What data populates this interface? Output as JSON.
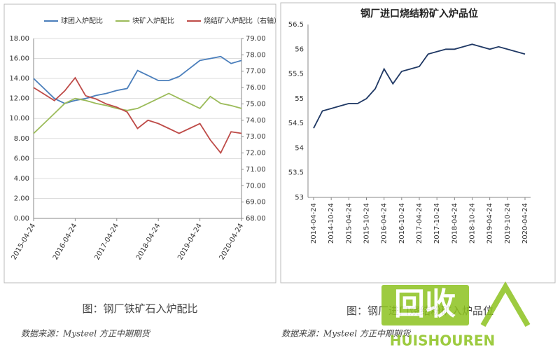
{
  "chart_data": [
    {
      "type": "line",
      "caption": "图：钢厂铁矿石入炉配比",
      "source": "数据来源：Mysteel 方正中期期货",
      "categories": [
        "2015-04-24",
        null,
        null,
        null,
        "2016-04-24",
        null,
        null,
        null,
        "2017-04-24",
        null,
        null,
        null,
        "2018-04-24",
        null,
        null,
        null,
        "2019-04-24",
        null,
        null,
        null,
        "2020-04-24"
      ],
      "series": [
        {
          "name": "球团入炉配比",
          "color": "#4a7ebb",
          "values": [
            14.0,
            13.0,
            12.0,
            11.5,
            11.8,
            12.0,
            12.3,
            12.5,
            12.8,
            13.0,
            14.8,
            14.3,
            13.8,
            13.8,
            14.2,
            15.0,
            15.8,
            16.0,
            16.2,
            15.5,
            15.8
          ]
        },
        {
          "name": "块矿入炉配比",
          "color": "#9bbb59",
          "values": [
            8.5,
            9.5,
            10.5,
            11.5,
            12.0,
            11.8,
            11.5,
            11.3,
            11.0,
            10.8,
            11.0,
            11.5,
            12.0,
            12.5,
            12.0,
            11.5,
            11.0,
            12.2,
            11.5,
            11.3,
            11.0
          ]
        },
        {
          "name": "烧结矿入炉配比（右轴）",
          "color": "#be4b48",
          "axis": "y2",
          "values": [
            76.0,
            75.6,
            75.2,
            75.8,
            76.6,
            75.5,
            75.3,
            75.0,
            74.8,
            74.5,
            73.5,
            74.0,
            73.8,
            73.5,
            73.2,
            73.5,
            73.8,
            72.8,
            72.0,
            73.3,
            73.2
          ]
        }
      ],
      "ylim": [
        0,
        18
      ],
      "yticks": [
        {
          "value": 0,
          "label": "0.00"
        },
        {
          "value": 2,
          "label": "2.00"
        },
        {
          "value": 4,
          "label": "4.00"
        },
        {
          "value": 6,
          "label": "6.00"
        },
        {
          "value": 8,
          "label": "8.00"
        },
        {
          "value": 10,
          "label": "10.00"
        },
        {
          "value": 12,
          "label": "12.00"
        },
        {
          "value": 14,
          "label": "14.00"
        },
        {
          "value": 16,
          "label": "16.00"
        },
        {
          "value": 18,
          "label": "18.00"
        }
      ],
      "y2lim": [
        68,
        79
      ],
      "y2ticks": [
        {
          "value": 68,
          "label": "68.00"
        },
        {
          "value": 69,
          "label": "69.00"
        },
        {
          "value": 70,
          "label": "70.00"
        },
        {
          "value": 71,
          "label": "71.00"
        },
        {
          "value": 72,
          "label": "72.00"
        },
        {
          "value": 73,
          "label": "73.00"
        },
        {
          "value": 74,
          "label": "74.00"
        },
        {
          "value": 75,
          "label": "75.00"
        },
        {
          "value": 76,
          "label": "76.00"
        },
        {
          "value": 77,
          "label": "77.00"
        },
        {
          "value": 78,
          "label": "78.00"
        },
        {
          "value": 79,
          "label": "79.00"
        }
      ],
      "grid": true,
      "legend": "top"
    },
    {
      "type": "line",
      "title": "钢厂进口烧结粉矿入炉品位",
      "caption": "图：钢厂进口烧结粉矿入炉品位",
      "source": "数据来源：Mysteel 方正中期期货",
      "categories": [
        "2014-04-24",
        null,
        "2014-10-24",
        null,
        "2015-04-24",
        null,
        "2015-10-24",
        null,
        "2016-04-24",
        null,
        "2016-10-24",
        null,
        "2017-04-24",
        null,
        "2017-10-24",
        null,
        "2018-04-24",
        null,
        "2018-10-24",
        null,
        "2019-04-24",
        null,
        "2019-10-24",
        null,
        "2020-04-24"
      ],
      "series": [
        {
          "color": "#1f3864",
          "values": [
            54.4,
            54.75,
            54.8,
            54.85,
            54.9,
            54.9,
            55.0,
            55.2,
            55.6,
            55.3,
            55.55,
            55.6,
            55.65,
            55.9,
            55.95,
            56.0,
            56.0,
            56.05,
            56.1,
            56.05,
            56.0,
            56.05,
            56.0,
            55.95,
            55.9
          ]
        }
      ],
      "ylim": [
        53,
        56.5
      ],
      "yticks": [
        53,
        53.5,
        54,
        54.5,
        55,
        55.5,
        56,
        56.5
      ],
      "grid": false
    }
  ],
  "watermark": {
    "logo": "回收",
    "text": "HUISHOUREN"
  }
}
